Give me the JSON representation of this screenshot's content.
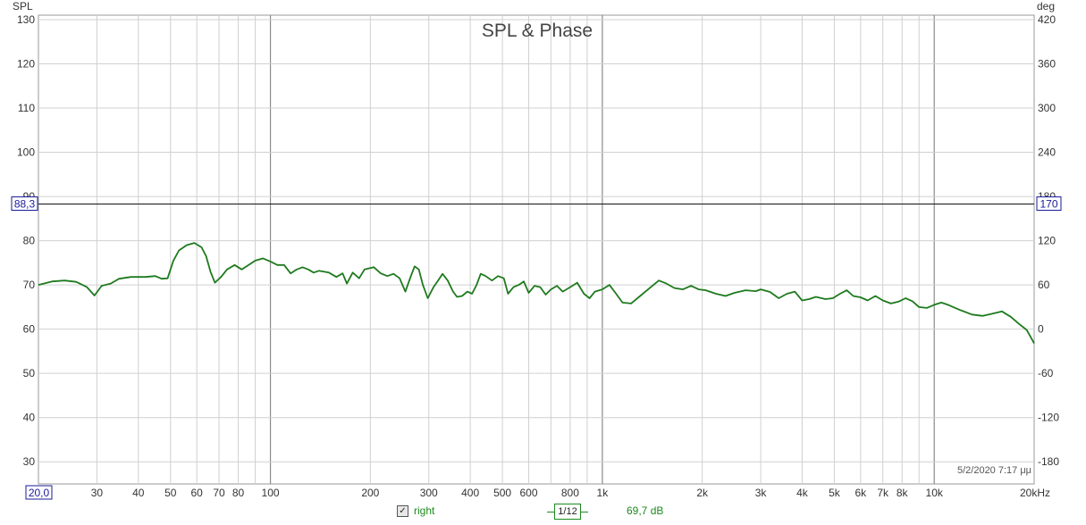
{
  "chart_data": {
    "type": "line",
    "title": "SPL & Phase",
    "ylabel": "SPL",
    "y2label": "deg",
    "xscale": "log",
    "xlim": [
      20,
      20000
    ],
    "ylim": [
      25,
      131
    ],
    "y2lim": [
      -30,
      430
    ],
    "x_ticks": [
      {
        "v": 20,
        "label": "20,0"
      },
      {
        "v": 30,
        "label": "30"
      },
      {
        "v": 40,
        "label": "40"
      },
      {
        "v": 50,
        "label": "50"
      },
      {
        "v": 60,
        "label": "60"
      },
      {
        "v": 70,
        "label": "70"
      },
      {
        "v": 80,
        "label": "80"
      },
      {
        "v": 100,
        "label": "100"
      },
      {
        "v": 200,
        "label": "200"
      },
      {
        "v": 300,
        "label": "300"
      },
      {
        "v": 400,
        "label": "400"
      },
      {
        "v": 500,
        "label": "500"
      },
      {
        "v": 600,
        "label": "600"
      },
      {
        "v": 800,
        "label": "800"
      },
      {
        "v": 1000,
        "label": "1k"
      },
      {
        "v": 2000,
        "label": "2k"
      },
      {
        "v": 3000,
        "label": "3k"
      },
      {
        "v": 4000,
        "label": "4k"
      },
      {
        "v": 5000,
        "label": "5k"
      },
      {
        "v": 6000,
        "label": "6k"
      },
      {
        "v": 7000,
        "label": "7k"
      },
      {
        "v": 8000,
        "label": "8k"
      },
      {
        "v": 10000,
        "label": "10k"
      },
      {
        "v": 20000,
        "label": "20kHz"
      }
    ],
    "y_ticks": [
      30,
      40,
      50,
      60,
      70,
      80,
      90,
      100,
      110,
      120,
      130
    ],
    "y2_ticks": [
      {
        "v": 30,
        "label": "-180"
      },
      {
        "v": 40,
        "label": "-120"
      },
      {
        "v": 50,
        "label": "-60"
      },
      {
        "v": 60,
        "label": "0"
      },
      {
        "v": 70,
        "label": "60"
      },
      {
        "v": 80,
        "label": "120"
      },
      {
        "v": 90,
        "label": "180"
      },
      {
        "v": 100,
        "label": "240"
      },
      {
        "v": 110,
        "label": "300"
      },
      {
        "v": 120,
        "label": "360"
      },
      {
        "v": 130,
        "label": "420"
      }
    ],
    "cursor": {
      "y": 88.3,
      "y_label": "88,3",
      "y2_label": "170"
    },
    "grid": true,
    "series": [
      {
        "name": "right",
        "color": "#1e7a1e",
        "points": [
          [
            20,
            70.0
          ],
          [
            22,
            70.8
          ],
          [
            24,
            71.0
          ],
          [
            26,
            70.7
          ],
          [
            28,
            69.5
          ],
          [
            29.5,
            67.6
          ],
          [
            31,
            69.8
          ],
          [
            33,
            70.3
          ],
          [
            35,
            71.4
          ],
          [
            38,
            71.8
          ],
          [
            42,
            71.8
          ],
          [
            45,
            72.0
          ],
          [
            47,
            71.4
          ],
          [
            49,
            71.5
          ],
          [
            51,
            75.5
          ],
          [
            53,
            77.8
          ],
          [
            56,
            79.0
          ],
          [
            59,
            79.5
          ],
          [
            62,
            78.5
          ],
          [
            64,
            76.5
          ],
          [
            66,
            73.0
          ],
          [
            68,
            70.5
          ],
          [
            71,
            71.8
          ],
          [
            74,
            73.5
          ],
          [
            78,
            74.5
          ],
          [
            82,
            73.5
          ],
          [
            86,
            74.5
          ],
          [
            90,
            75.5
          ],
          [
            95,
            76.0
          ],
          [
            100,
            75.3
          ],
          [
            105,
            74.5
          ],
          [
            110,
            74.5
          ],
          [
            115,
            72.6
          ],
          [
            120,
            73.5
          ],
          [
            125,
            74.0
          ],
          [
            130,
            73.5
          ],
          [
            135,
            72.8
          ],
          [
            140,
            73.2
          ],
          [
            150,
            72.8
          ],
          [
            158,
            71.8
          ],
          [
            165,
            72.6
          ],
          [
            170,
            70.3
          ],
          [
            177,
            72.8
          ],
          [
            185,
            71.5
          ],
          [
            192,
            73.5
          ],
          [
            205,
            74.0
          ],
          [
            215,
            72.6
          ],
          [
            225,
            72.0
          ],
          [
            235,
            72.5
          ],
          [
            245,
            71.5
          ],
          [
            255,
            68.5
          ],
          [
            265,
            72.0
          ],
          [
            272,
            74.2
          ],
          [
            280,
            73.5
          ],
          [
            288,
            70.0
          ],
          [
            298,
            67.0
          ],
          [
            310,
            69.5
          ],
          [
            320,
            71.0
          ],
          [
            330,
            72.5
          ],
          [
            342,
            71.0
          ],
          [
            355,
            68.5
          ],
          [
            365,
            67.3
          ],
          [
            378,
            67.5
          ],
          [
            392,
            68.5
          ],
          [
            405,
            68.0
          ],
          [
            418,
            70.0
          ],
          [
            430,
            72.5
          ],
          [
            445,
            72.0
          ],
          [
            465,
            71.0
          ],
          [
            485,
            72.0
          ],
          [
            505,
            71.5
          ],
          [
            520,
            68.0
          ],
          [
            540,
            69.5
          ],
          [
            560,
            70.0
          ],
          [
            580,
            70.8
          ],
          [
            600,
            68.2
          ],
          [
            625,
            69.8
          ],
          [
            650,
            69.5
          ],
          [
            675,
            67.8
          ],
          [
            700,
            69.0
          ],
          [
            730,
            69.8
          ],
          [
            760,
            68.5
          ],
          [
            800,
            69.5
          ],
          [
            840,
            70.5
          ],
          [
            880,
            68.0
          ],
          [
            915,
            67.0
          ],
          [
            950,
            68.5
          ],
          [
            1000,
            69.0
          ],
          [
            1050,
            70.0
          ],
          [
            1100,
            68.0
          ],
          [
            1150,
            66.0
          ],
          [
            1220,
            65.8
          ],
          [
            1300,
            67.5
          ],
          [
            1400,
            69.5
          ],
          [
            1480,
            71.0
          ],
          [
            1560,
            70.3
          ],
          [
            1650,
            69.3
          ],
          [
            1750,
            69.0
          ],
          [
            1850,
            69.8
          ],
          [
            1950,
            69.0
          ],
          [
            2050,
            68.8
          ],
          [
            2200,
            68.0
          ],
          [
            2350,
            67.5
          ],
          [
            2500,
            68.2
          ],
          [
            2700,
            68.8
          ],
          [
            2900,
            68.6
          ],
          [
            3000,
            69.0
          ],
          [
            3200,
            68.4
          ],
          [
            3400,
            67.0
          ],
          [
            3600,
            68.0
          ],
          [
            3800,
            68.5
          ],
          [
            4000,
            66.5
          ],
          [
            4200,
            66.8
          ],
          [
            4400,
            67.3
          ],
          [
            4700,
            66.8
          ],
          [
            4950,
            67.0
          ],
          [
            5200,
            68.0
          ],
          [
            5450,
            68.8
          ],
          [
            5700,
            67.5
          ],
          [
            6000,
            67.2
          ],
          [
            6300,
            66.5
          ],
          [
            6650,
            67.5
          ],
          [
            7000,
            66.5
          ],
          [
            7400,
            65.8
          ],
          [
            7800,
            66.2
          ],
          [
            8200,
            67.0
          ],
          [
            8600,
            66.3
          ],
          [
            9000,
            65.0
          ],
          [
            9500,
            64.8
          ],
          [
            10000,
            65.5
          ],
          [
            10500,
            66.0
          ],
          [
            11000,
            65.5
          ],
          [
            12000,
            64.3
          ],
          [
            13000,
            63.3
          ],
          [
            14000,
            63.0
          ],
          [
            15000,
            63.5
          ],
          [
            16000,
            64.0
          ],
          [
            17000,
            62.8
          ],
          [
            18000,
            61.2
          ],
          [
            19000,
            59.8
          ],
          [
            20000,
            56.8
          ]
        ]
      }
    ],
    "timestamp": "5/2/2020 7:17 μμ"
  },
  "legend": {
    "series_label": "right",
    "checkbox_checked": true,
    "smoothing_label": "1/12",
    "cursor_value": "69,7 dB"
  }
}
